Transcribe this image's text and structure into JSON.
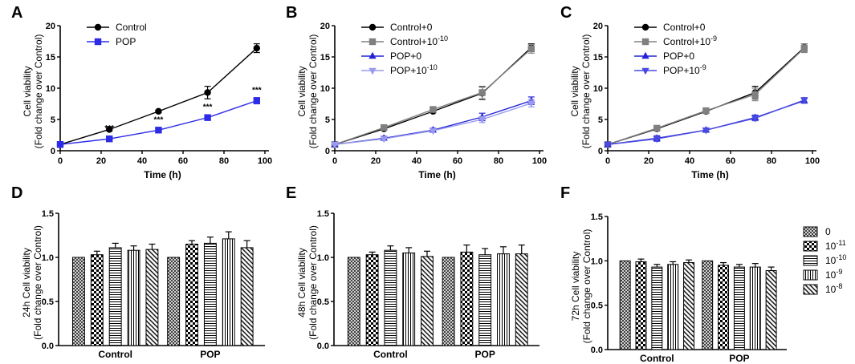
{
  "chart_data": [
    {
      "panel": "A",
      "type": "line",
      "title": "",
      "xlabel": "Time (h)",
      "ylabel": [
        "Cell viability",
        "(Fold change over Control)"
      ],
      "xlim": [
        0,
        100
      ],
      "ylim": [
        0,
        20
      ],
      "xticks": [
        "0",
        "20",
        "40",
        "60",
        "80",
        "100"
      ],
      "yticks": [
        "0",
        "5",
        "10",
        "15",
        "20"
      ],
      "legend_position": "top-left",
      "series": [
        {
          "name": "Control",
          "color": "#000000",
          "marker": "circle",
          "x": [
            0,
            24,
            48,
            72,
            96
          ],
          "y": [
            1,
            3.4,
            6.3,
            9.3,
            16.4
          ],
          "err": [
            0.1,
            0.2,
            0.2,
            1.0,
            0.7
          ]
        },
        {
          "name": "POP",
          "color": "#2B2BE8",
          "marker": "square",
          "x": [
            0,
            24,
            48,
            72,
            96
          ],
          "y": [
            1,
            1.9,
            3.3,
            5.3,
            8.0
          ],
          "err": [
            0.1,
            0.2,
            0.2,
            0.4,
            0.5
          ]
        }
      ],
      "annotations": [
        {
          "x": 24,
          "text": "***"
        },
        {
          "x": 48,
          "text": "***"
        },
        {
          "x": 72,
          "text": "***"
        },
        {
          "x": 96,
          "text": "***"
        }
      ]
    },
    {
      "panel": "B",
      "type": "line",
      "xlabel": "Time (h)",
      "ylabel": [
        "Cell viability",
        "(Fold change over Control)"
      ],
      "xlim": [
        0,
        100
      ],
      "ylim": [
        0,
        20
      ],
      "xticks": [
        "0",
        "20",
        "40",
        "60",
        "80",
        "100"
      ],
      "yticks": [
        "0",
        "5",
        "10",
        "15",
        "20"
      ],
      "legend_position": "top-left",
      "series": [
        {
          "name": "Control+0",
          "color": "#000000",
          "marker": "circle",
          "x": [
            0,
            24,
            48,
            72,
            96
          ],
          "y": [
            1,
            3.5,
            6.3,
            9.2,
            16.5
          ],
          "err": [
            0.1,
            0.2,
            0.2,
            1.0,
            0.6
          ]
        },
        {
          "name": "Control+10",
          "sup": "-10",
          "color": "#808080",
          "marker": "square",
          "x": [
            0,
            24,
            48,
            72,
            96
          ],
          "y": [
            1,
            3.7,
            6.6,
            9.3,
            16.3
          ],
          "err": [
            0.1,
            0.2,
            0.3,
            1.0,
            0.7
          ]
        },
        {
          "name": "POP+0",
          "color": "#2424D6",
          "marker": "triangle-up",
          "x": [
            0,
            24,
            48,
            72,
            96
          ],
          "y": [
            1,
            2.0,
            3.3,
            5.4,
            8.0
          ],
          "err": [
            0.1,
            0.3,
            0.3,
            0.6,
            0.6
          ]
        },
        {
          "name": "POP+10",
          "sup": "-10",
          "color": "#9A9AF0",
          "marker": "triangle-down",
          "x": [
            0,
            24,
            48,
            72,
            96
          ],
          "y": [
            1,
            1.9,
            3.2,
            5.0,
            7.6
          ],
          "err": [
            0.1,
            0.3,
            0.3,
            0.5,
            0.6
          ]
        }
      ]
    },
    {
      "panel": "C",
      "type": "line",
      "xlabel": "Time (h)",
      "ylabel": [
        "Cell viability",
        "(Fold change over Control)"
      ],
      "xlim": [
        0,
        100
      ],
      "ylim": [
        0,
        20
      ],
      "xticks": [
        "0",
        "20",
        "40",
        "60",
        "80",
        "100"
      ],
      "yticks": [
        "0",
        "5",
        "10",
        "15",
        "20"
      ],
      "legend_position": "top-left",
      "series": [
        {
          "name": "Control+0",
          "color": "#000000",
          "marker": "circle",
          "x": [
            0,
            24,
            48,
            72,
            96
          ],
          "y": [
            1,
            3.5,
            6.3,
            9.3,
            16.5
          ],
          "err": [
            0.1,
            0.2,
            0.2,
            1.0,
            0.6
          ]
        },
        {
          "name": "Control+10",
          "sup": "-9",
          "color": "#808080",
          "marker": "square",
          "x": [
            0,
            24,
            48,
            72,
            96
          ],
          "y": [
            1,
            3.6,
            6.4,
            9.0,
            16.4
          ],
          "err": [
            0.1,
            0.2,
            0.3,
            1.0,
            0.7
          ]
        },
        {
          "name": "POP+0",
          "color": "#2424D6",
          "marker": "triangle-up",
          "x": [
            0,
            24,
            48,
            72,
            96
          ],
          "y": [
            1,
            2.0,
            3.3,
            5.3,
            8.0
          ],
          "err": [
            0.1,
            0.4,
            0.2,
            0.4,
            0.4
          ]
        },
        {
          "name": "POP+10",
          "sup": "-9",
          "color": "#4A4AE0",
          "marker": "triangle-down",
          "x": [
            0,
            24,
            48,
            72,
            96
          ],
          "y": [
            1,
            1.9,
            3.3,
            5.2,
            8.1
          ],
          "err": [
            0.1,
            0.4,
            0.2,
            0.4,
            0.4
          ]
        }
      ]
    },
    {
      "panel": "D",
      "type": "bar",
      "ylabel": [
        "24h Cell viability",
        "(Fold change over Control)"
      ],
      "ylim": [
        0,
        1.5
      ],
      "yticks": [
        "0.0",
        "0.5",
        "1.0",
        "1.5"
      ],
      "categories": [
        "Control",
        "POP"
      ],
      "series": [
        {
          "name": "0",
          "values": [
            1.0,
            1.0
          ],
          "err": [
            0,
            0
          ]
        },
        {
          "name": "10",
          "sup": "-11",
          "values": [
            1.03,
            1.15
          ],
          "err": [
            0.04,
            0.04
          ]
        },
        {
          "name": "10",
          "sup": "-10",
          "values": [
            1.11,
            1.16
          ],
          "err": [
            0.05,
            0.07
          ]
        },
        {
          "name": "10",
          "sup": "-9",
          "values": [
            1.08,
            1.21
          ],
          "err": [
            0.05,
            0.08
          ]
        },
        {
          "name": "10",
          "sup": "-8",
          "values": [
            1.09,
            1.11
          ],
          "err": [
            0.06,
            0.08
          ]
        }
      ]
    },
    {
      "panel": "E",
      "type": "bar",
      "ylabel": [
        "48h Cell viability",
        "(Fold change over Control)"
      ],
      "ylim": [
        0,
        1.5
      ],
      "yticks": [
        "0.0",
        "0.5",
        "1.0",
        "1.5"
      ],
      "categories": [
        "Control",
        "POP"
      ],
      "series": [
        {
          "name": "0",
          "values": [
            1.0,
            1.0
          ],
          "err": [
            0,
            0
          ]
        },
        {
          "name": "10",
          "sup": "-11",
          "values": [
            1.03,
            1.06
          ],
          "err": [
            0.03,
            0.08
          ]
        },
        {
          "name": "10",
          "sup": "-10",
          "values": [
            1.08,
            1.03
          ],
          "err": [
            0.05,
            0.07
          ]
        },
        {
          "name": "10",
          "sup": "-9",
          "values": [
            1.05,
            1.04
          ],
          "err": [
            0.06,
            0.08
          ]
        },
        {
          "name": "10",
          "sup": "-8",
          "values": [
            1.01,
            1.04
          ],
          "err": [
            0.06,
            0.1
          ]
        }
      ]
    },
    {
      "panel": "F",
      "type": "bar",
      "ylabel": [
        "72h Cell viability",
        "(Fold change over Control)"
      ],
      "ylim": [
        0,
        1.5
      ],
      "yticks": [
        "0.0",
        "0.5",
        "1.0",
        "1.5"
      ],
      "categories": [
        "Control",
        "POP"
      ],
      "legend_position": "right",
      "series": [
        {
          "name": "0",
          "values": [
            1.0,
            1.0
          ],
          "err": [
            0,
            0
          ]
        },
        {
          "name": "10",
          "sup": "-11",
          "values": [
            0.99,
            0.95
          ],
          "err": [
            0.03,
            0.03
          ]
        },
        {
          "name": "10",
          "sup": "-10",
          "values": [
            0.93,
            0.93
          ],
          "err": [
            0.03,
            0.03
          ]
        },
        {
          "name": "10",
          "sup": "-9",
          "values": [
            0.96,
            0.93
          ],
          "err": [
            0.03,
            0.04
          ]
        },
        {
          "name": "10",
          "sup": "-8",
          "values": [
            0.98,
            0.89
          ],
          "err": [
            0.03,
            0.04
          ]
        }
      ]
    }
  ]
}
